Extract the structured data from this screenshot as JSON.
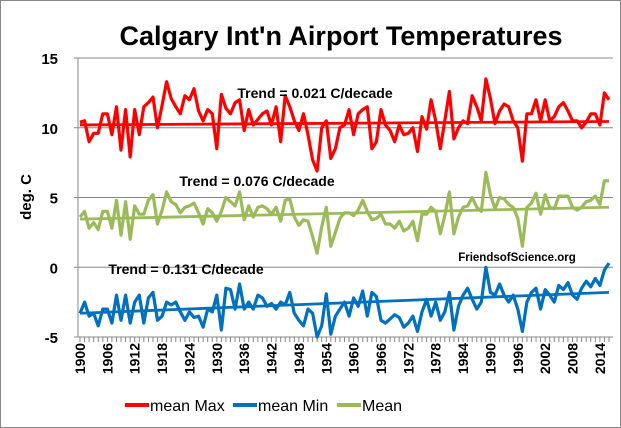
{
  "chart_data": {
    "type": "line",
    "title": "Calgary Int'n Airport Temperatures",
    "xlabel": "",
    "ylabel": "deg. C",
    "ylim": [
      -5,
      15
    ],
    "yticks": [
      -5,
      0,
      5,
      10,
      15
    ],
    "xlim": [
      1900,
      2016
    ],
    "xtick_labels": [
      "1900",
      "1906",
      "1912",
      "1918",
      "1924",
      "1930",
      "1936",
      "1942",
      "1948",
      "1954",
      "1960",
      "1966",
      "1972",
      "1978",
      "1984",
      "1990",
      "1996",
      "2002",
      "2008",
      "2014"
    ],
    "grid": "horizontal",
    "legend_position": "bottom",
    "x_start": 1900,
    "series": [
      {
        "name": "mean Max",
        "color": "#ff0000",
        "values": [
          10.4,
          10.5,
          9.0,
          9.6,
          9.6,
          11.0,
          11.0,
          9.5,
          11.5,
          8.4,
          11.3,
          7.9,
          11.3,
          9.5,
          11.5,
          11.8,
          12.2,
          10.0,
          11.6,
          13.3,
          12.1,
          11.5,
          11.0,
          12.3,
          12.0,
          12.8,
          11.2,
          10.5,
          11.3,
          11.0,
          8.5,
          12.4,
          11.4,
          11.0,
          11.8,
          12.0,
          9.8,
          11.3,
          10.2,
          10.6,
          11.0,
          11.2,
          10.2,
          11.5,
          9.0,
          12.3,
          11.5,
          10.5,
          9.8,
          11.0,
          9.5,
          7.7,
          6.9,
          10.0,
          10.5,
          7.8,
          8.5,
          10.0,
          10.2,
          11.3,
          9.5,
          11.0,
          11.3,
          11.5,
          8.5,
          9.0,
          11.3,
          10.2,
          9.8,
          9.0,
          10.2,
          9.5,
          9.6,
          10.0,
          8.3,
          10.8,
          9.9,
          12.0,
          10.5,
          8.5,
          10.5,
          12.6,
          9.2,
          10.0,
          10.5,
          10.3,
          12.3,
          11.5,
          10.5,
          13.5,
          12.1,
          10.3,
          11.2,
          11.7,
          11.5,
          10.5,
          10.0,
          7.6,
          11.0,
          11.0,
          12.0,
          10.5,
          12.0,
          10.5,
          10.8,
          11.5,
          11.8,
          11.2,
          10.5,
          10.5,
          10.0,
          10.4,
          11.0,
          11.0,
          10.2,
          12.5,
          12.0
        ],
        "trend": {
          "label": "Trend = 0.021 C/decade",
          "rate_per_decade": 0.021,
          "start": 10.2,
          "end": 10.45
        }
      },
      {
        "name": "mean Min",
        "color": "#0070c0",
        "values": [
          -3.3,
          -2.5,
          -3.5,
          -3.3,
          -4.2,
          -3.0,
          -3.0,
          -4.0,
          -2.0,
          -3.8,
          -2.0,
          -4.0,
          -2.5,
          -2.0,
          -4.0,
          -2.2,
          -1.8,
          -3.8,
          -3.5,
          -2.5,
          -2.7,
          -2.5,
          -3.2,
          -3.8,
          -3.2,
          -3.6,
          -3.5,
          -4.3,
          -3.0,
          -3.2,
          -2.0,
          -4.5,
          -1.5,
          -1.6,
          -3.0,
          -1.2,
          -3.0,
          -2.5,
          -3.0,
          -2.0,
          -2.2,
          -2.8,
          -2.6,
          -3.0,
          -2.5,
          -2.7,
          -1.8,
          -3.3,
          -3.8,
          -4.2,
          -3.0,
          -3.3,
          -5.0,
          -4.2,
          -1.9,
          -4.8,
          -3.5,
          -3.0,
          -2.5,
          -3.5,
          -2.2,
          -2.8,
          -1.7,
          -3.5,
          -1.8,
          -2.1,
          -3.8,
          -4.0,
          -3.7,
          -3.4,
          -3.6,
          -4.3,
          -4.0,
          -3.5,
          -4.6,
          -3.2,
          -2.3,
          -3.5,
          -2.5,
          -3.8,
          -3.2,
          -1.8,
          -4.5,
          -2.8,
          -2.0,
          -1.5,
          -2.3,
          -3.0,
          -2.5,
          0.0,
          -1.8,
          -2.0,
          -1.2,
          -2.0,
          -2.5,
          -2.0,
          -3.0,
          -4.6,
          -2.5,
          -1.8,
          -1.5,
          -3.0,
          -1.6,
          -2.0,
          -2.5,
          -1.3,
          -1.6,
          -1.1,
          -2.0,
          -2.3,
          -1.5,
          -1.0,
          -1.4,
          -0.8,
          -1.3,
          -0.2,
          0.3
        ],
        "trend": {
          "label": "Trend = 0.131 C/decade",
          "rate_per_decade": 0.131,
          "start": -3.3,
          "end": -1.8
        }
      },
      {
        "name": "Mean",
        "color": "#9bbb59",
        "values": [
          3.6,
          4.0,
          2.8,
          3.2,
          2.7,
          4.0,
          4.0,
          2.8,
          4.8,
          2.3,
          4.7,
          2.0,
          4.4,
          3.8,
          3.8,
          4.8,
          5.2,
          3.1,
          4.1,
          5.4,
          4.7,
          4.5,
          3.9,
          4.3,
          4.4,
          4.6,
          3.9,
          3.1,
          4.2,
          3.9,
          3.3,
          4.0,
          5.0,
          4.7,
          4.4,
          5.4,
          3.4,
          4.4,
          3.6,
          4.3,
          4.4,
          4.2,
          3.8,
          4.3,
          3.3,
          4.8,
          4.9,
          3.6,
          3.0,
          3.4,
          3.3,
          2.2,
          1.0,
          2.9,
          4.3,
          1.5,
          2.5,
          3.5,
          3.9,
          3.9,
          3.7,
          4.1,
          4.8,
          4.0,
          3.4,
          3.5,
          3.8,
          3.1,
          3.1,
          2.8,
          3.3,
          2.6,
          2.8,
          3.3,
          1.9,
          3.8,
          3.8,
          4.3,
          4.0,
          2.4,
          3.7,
          5.4,
          2.4,
          3.6,
          4.3,
          4.4,
          5.0,
          4.3,
          4.0,
          6.8,
          5.2,
          4.2,
          5.0,
          4.9,
          4.5,
          4.3,
          3.5,
          1.5,
          4.3,
          4.6,
          5.3,
          3.8,
          5.2,
          4.3,
          4.2,
          5.1,
          5.1,
          5.1,
          4.3,
          4.1,
          4.3,
          4.7,
          4.8,
          5.1,
          4.5,
          6.2,
          6.2
        ],
        "trend": {
          "label": "Trend = 0.076 C/decade",
          "rate_per_decade": 0.076,
          "start": 3.45,
          "end": 4.3
        }
      }
    ],
    "annotations": [
      "FriendsofScience.org"
    ]
  }
}
